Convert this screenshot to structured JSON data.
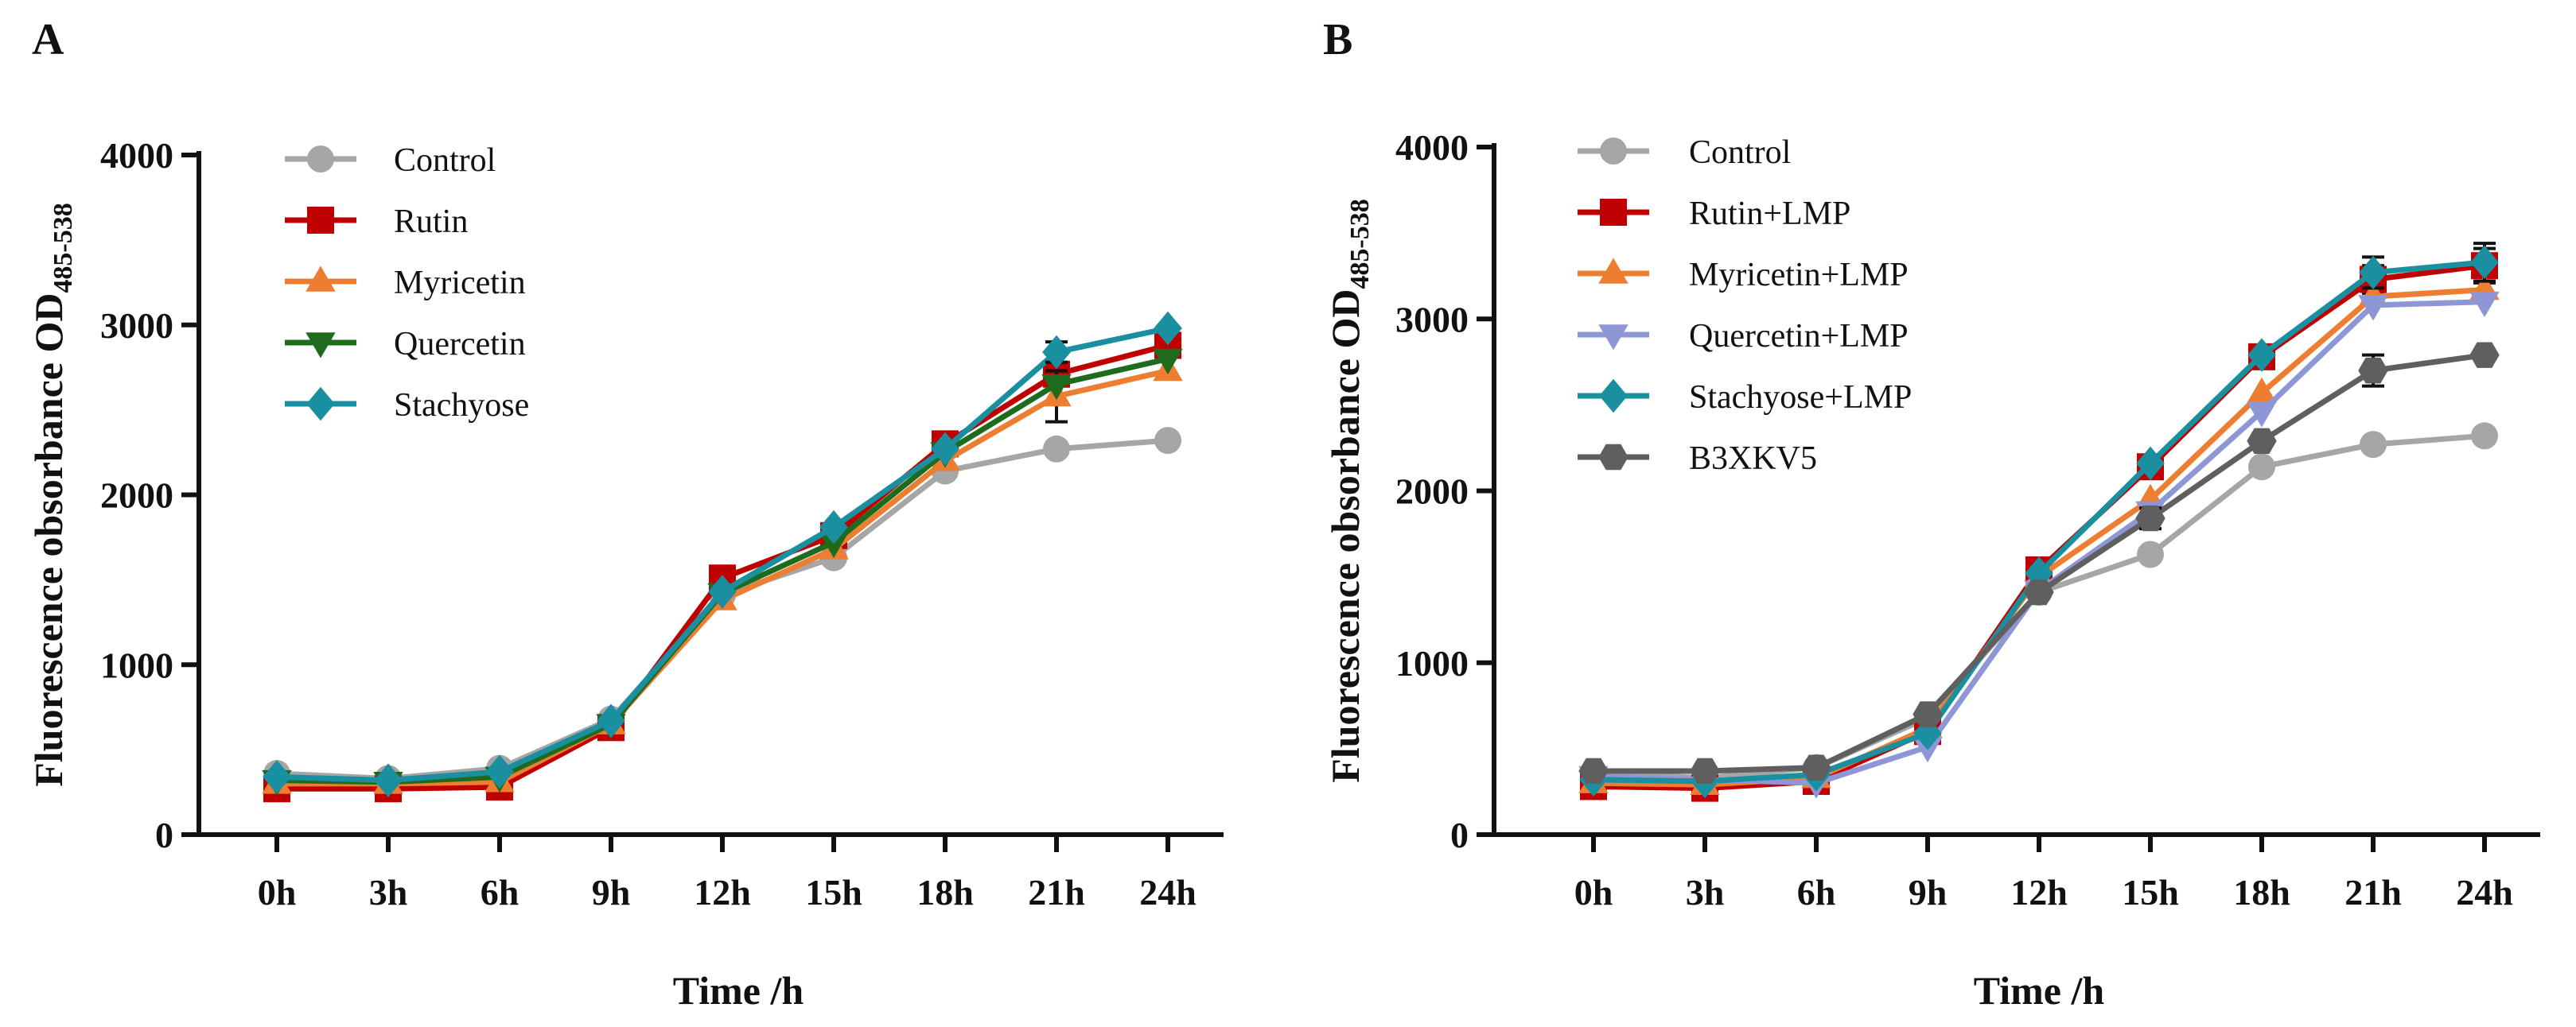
{
  "chart_data": [
    {
      "panel_label": "A",
      "type": "line",
      "title": "",
      "xlabel": "Time /h",
      "ylabel": "Fluorescence obsorbance OD",
      "ylabel_subscript": "485-538",
      "categories": [
        "0h",
        "3h",
        "6h",
        "9h",
        "12h",
        "15h",
        "18h",
        "21h",
        "24h"
      ],
      "ylim": [
        0,
        4000
      ],
      "yticks": [
        "0",
        "1000",
        "2000",
        "3000",
        "4000"
      ],
      "legend_position": "top-left",
      "series": [
        {
          "name": "Control",
          "marker": "circle",
          "color": "#a6a6a6",
          "values": [
            360,
            330,
            390,
            680,
            1410,
            1630,
            2140,
            2270,
            2320
          ],
          "errors": [
            0,
            0,
            0,
            0,
            0,
            30,
            0,
            0,
            0
          ]
        },
        {
          "name": "Rutin",
          "marker": "square",
          "color": "#c00000",
          "values": [
            270,
            270,
            280,
            630,
            1510,
            1760,
            2300,
            2710,
            2880
          ],
          "errors": [
            0,
            0,
            0,
            0,
            0,
            0,
            0,
            60,
            70
          ]
        },
        {
          "name": "Myricetin",
          "marker": "triangle-up",
          "color": "#ed7d31",
          "values": [
            300,
            300,
            310,
            650,
            1380,
            1680,
            2200,
            2580,
            2730
          ],
          "errors": [
            0,
            0,
            0,
            0,
            0,
            0,
            0,
            150,
            0
          ]
        },
        {
          "name": "Quercetin",
          "marker": "triangle-down",
          "color": "#1e6b1e",
          "values": [
            320,
            310,
            340,
            650,
            1420,
            1720,
            2250,
            2650,
            2800
          ],
          "errors": [
            0,
            0,
            0,
            0,
            0,
            0,
            0,
            0,
            0
          ]
        },
        {
          "name": "Stachyose",
          "marker": "diamond",
          "color": "#1a8fa0",
          "values": [
            340,
            320,
            370,
            670,
            1430,
            1810,
            2270,
            2840,
            2980
          ],
          "errors": [
            0,
            0,
            0,
            0,
            0,
            0,
            0,
            60,
            0
          ]
        }
      ]
    },
    {
      "panel_label": "B",
      "type": "line",
      "title": "",
      "xlabel": "Time /h",
      "ylabel": "Fluorescence obsorbance OD",
      "ylabel_subscript": "485-538",
      "categories": [
        "0h",
        "3h",
        "6h",
        "9h",
        "12h",
        "15h",
        "18h",
        "21h",
        "24h"
      ],
      "ylim": [
        0,
        4000
      ],
      "yticks": [
        "0",
        "1000",
        "2000",
        "3000",
        "4000"
      ],
      "legend_position": "top-left",
      "series": [
        {
          "name": "Control",
          "marker": "circle",
          "color": "#a6a6a6",
          "values": [
            360,
            330,
            390,
            680,
            1410,
            1630,
            2140,
            2270,
            2320
          ],
          "errors": [
            0,
            0,
            0,
            0,
            0,
            0,
            0,
            0,
            0
          ]
        },
        {
          "name": "Rutin+LMP",
          "marker": "square",
          "color": "#c00000",
          "values": [
            280,
            270,
            310,
            600,
            1540,
            2140,
            2780,
            3230,
            3310
          ],
          "errors": [
            0,
            0,
            0,
            0,
            0,
            0,
            0,
            80,
            100
          ]
        },
        {
          "name": "Myricetin+LMP",
          "marker": "triangle-up",
          "color": "#ed7d31",
          "values": [
            300,
            290,
            330,
            620,
            1500,
            1950,
            2570,
            3130,
            3170
          ],
          "errors": [
            0,
            0,
            0,
            0,
            0,
            0,
            0,
            0,
            0
          ]
        },
        {
          "name": "Quercetin+LMP",
          "marker": "triangle-down",
          "color": "#8e96d6",
          "values": [
            340,
            320,
            300,
            510,
            1420,
            1880,
            2460,
            3080,
            3100
          ],
          "errors": [
            0,
            0,
            0,
            0,
            0,
            0,
            0,
            0,
            0
          ]
        },
        {
          "name": "Stachyose+LMP",
          "marker": "diamond",
          "color": "#1a8fa0",
          "values": [
            320,
            310,
            350,
            590,
            1520,
            2160,
            2790,
            3270,
            3330
          ],
          "errors": [
            0,
            0,
            0,
            0,
            0,
            0,
            0,
            90,
            110
          ]
        },
        {
          "name": "B3XKV5",
          "marker": "hexagon",
          "color": "#5f5f5f",
          "values": [
            370,
            370,
            390,
            700,
            1410,
            1840,
            2290,
            2700,
            2790
          ],
          "errors": [
            0,
            0,
            0,
            0,
            0,
            60,
            0,
            90,
            0
          ]
        }
      ]
    }
  ]
}
